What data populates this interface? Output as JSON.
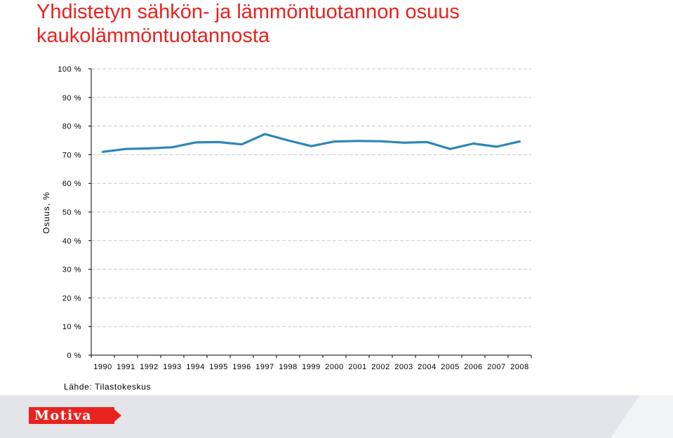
{
  "title_line1": "Yhdistetyn sähkön- ja lämmöntuotannon osuus",
  "title_line2": "kaukolämmöntuotannosta",
  "source": "Lähde: Tilastokeskus",
  "logo_text": "Motiva",
  "colors": {
    "title": "#e8231f",
    "line": "#2e86b7",
    "grid": "#c8c8c8",
    "logo": "#e8231f",
    "footer": "#e3e5e8"
  },
  "chart_data": {
    "type": "line",
    "title": "Yhdistetyn sähkön- ja lämmöntuotannon osuus kaukolämmöntuotannosta",
    "ylabel": "Osuus, %",
    "xlabel": "",
    "ylim": [
      0,
      100
    ],
    "yticks": [
      "0 %",
      "10 %",
      "20 %",
      "30 %",
      "40 %",
      "50 %",
      "60 %",
      "70 %",
      "80 %",
      "90 %",
      "100 %"
    ],
    "grid": "horizontal dashed",
    "categories": [
      "1990",
      "1991",
      "1992",
      "1993",
      "1994",
      "1995",
      "1996",
      "1997",
      "1998",
      "1999",
      "2000",
      "2001",
      "2002",
      "2003",
      "2004",
      "2005",
      "2006",
      "2007",
      "2008"
    ],
    "series": [
      {
        "values": [
          71.0,
          72.0,
          72.2,
          72.6,
          74.3,
          74.4,
          73.6,
          77.2,
          75.0,
          73.0,
          74.6,
          74.8,
          74.7,
          74.2,
          74.4,
          72.0,
          73.9,
          72.8,
          74.6
        ]
      }
    ]
  }
}
